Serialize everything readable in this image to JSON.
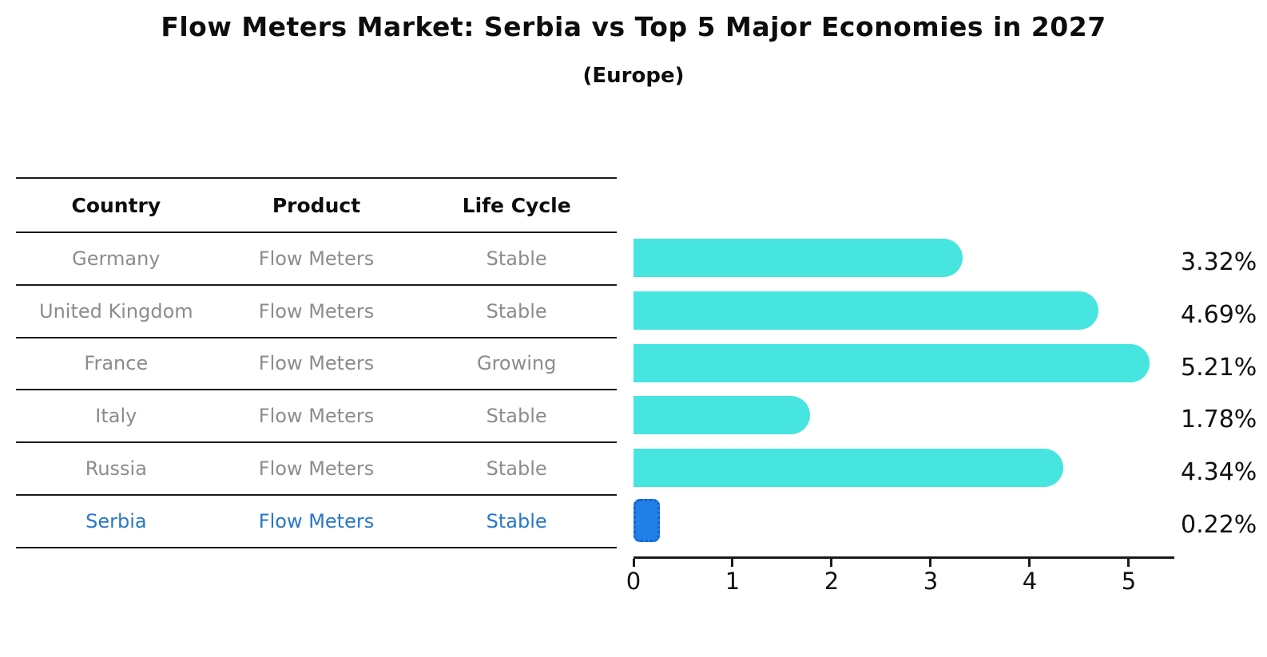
{
  "title": "Flow Meters Market: Serbia vs Top 5 Major Economies in 2027",
  "subtitle": "(Europe)",
  "table": {
    "headers": [
      "Country",
      "Product",
      "Life Cycle"
    ],
    "rows": [
      {
        "country": "Germany",
        "product": "Flow Meters",
        "life_cycle": "Stable",
        "highlight": false
      },
      {
        "country": "United Kingdom",
        "product": "Flow Meters",
        "life_cycle": "Stable",
        "highlight": false
      },
      {
        "country": "France",
        "product": "Flow Meters",
        "life_cycle": "Growing",
        "highlight": false
      },
      {
        "country": "Italy",
        "product": "Flow Meters",
        "life_cycle": "Stable",
        "highlight": false
      },
      {
        "country": "Russia",
        "product": "Flow Meters",
        "life_cycle": "Stable",
        "highlight": false
      },
      {
        "country": "Serbia",
        "product": "Flow Meters",
        "life_cycle": "Stable",
        "highlight": true
      }
    ]
  },
  "chart_data": {
    "type": "bar",
    "orientation": "horizontal",
    "categories": [
      "Germany",
      "United Kingdom",
      "France",
      "Italy",
      "Russia",
      "Serbia"
    ],
    "values": [
      3.32,
      4.69,
      5.21,
      1.78,
      4.34,
      0.22
    ],
    "labels": [
      "3.32%",
      "4.69%",
      "5.21%",
      "1.78%",
      "4.34%",
      "0.22%"
    ],
    "x_ticks": [
      "0",
      "1",
      "2",
      "3",
      "4",
      "5"
    ],
    "xlim": [
      0,
      5.46
    ],
    "grid": false,
    "legend": "none",
    "highlight_index": 5
  },
  "colors": {
    "bar": "#46E5E0",
    "highlight_bar_fill": "#2080E8",
    "highlight_bar_border": "#1261CF",
    "highlight_text": "#2877C8",
    "row_text": "#8C8C8C",
    "line": "#1A1A1A"
  }
}
